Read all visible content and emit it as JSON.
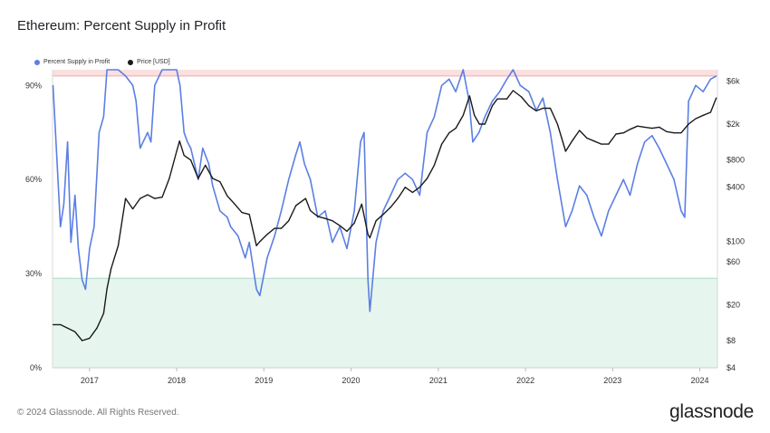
{
  "header": {
    "title": "Ethereum: Percent Supply in Profit"
  },
  "legend": [
    {
      "label": "Percent Supply in Profit",
      "color": "#5b7fe3"
    },
    {
      "label": "Price [USD]",
      "color": "#1a1a1a"
    }
  ],
  "footer": {
    "copyright": "© 2024 Glassnode. All Rights Reserved.",
    "brand": "glassnode"
  },
  "colors": {
    "supply_line": "#5b7fe3",
    "price_line": "#1a1a1a",
    "upper_band": "#fbe0e0",
    "upper_band_line": "#f0a6ad",
    "lower_band": "#e6f6ee",
    "lower_band_line": "#a9dcc2"
  },
  "chart_data": {
    "type": "line",
    "title": "Ethereum: Percent Supply in Profit",
    "x_ticks": [
      "2017",
      "2018",
      "2019",
      "2020",
      "2021",
      "2022",
      "2023",
      "2024"
    ],
    "xlim": [
      "2016-07-30",
      "2024-03-15"
    ],
    "y_left": {
      "ticks": [
        "0%",
        "30%",
        "60%",
        "90%"
      ],
      "tick_values": [
        0,
        30,
        60,
        90
      ],
      "ylim": [
        0,
        95
      ],
      "scale": "linear"
    },
    "y_right": {
      "ticks": [
        "$4",
        "$8",
        "$20",
        "$60",
        "$100",
        "$400",
        "$800",
        "$2k",
        "$6k"
      ],
      "tick_values": [
        4,
        8,
        20,
        60,
        100,
        400,
        800,
        2000,
        6000
      ],
      "ylim": [
        4,
        8000
      ],
      "scale": "log"
    },
    "bands": [
      {
        "axis": "left",
        "from": 93,
        "to": 95,
        "color": "#fbe0e0"
      },
      {
        "axis": "left",
        "from": 0,
        "to": 28.5,
        "color": "#e6f6ee"
      }
    ],
    "series": [
      {
        "name": "Percent Supply in Profit",
        "axis": "left",
        "color": "#5b7fe3",
        "x": [
          "2016-08-01",
          "2016-08-15",
          "2016-09-01",
          "2016-09-15",
          "2016-10-01",
          "2016-10-15",
          "2016-11-01",
          "2016-11-15",
          "2016-12-01",
          "2016-12-15",
          "2017-01-01",
          "2017-01-20",
          "2017-02-10",
          "2017-03-01",
          "2017-03-15",
          "2017-04-01",
          "2017-05-01",
          "2017-06-01",
          "2017-07-01",
          "2017-07-15",
          "2017-08-01",
          "2017-09-01",
          "2017-09-15",
          "2017-10-01",
          "2017-11-01",
          "2017-12-01",
          "2018-01-01",
          "2018-01-15",
          "2018-02-01",
          "2018-02-15",
          "2018-03-01",
          "2018-04-01",
          "2018-04-20",
          "2018-05-15",
          "2018-06-01",
          "2018-07-01",
          "2018-08-01",
          "2018-08-15",
          "2018-09-15",
          "2018-10-15",
          "2018-11-01",
          "2018-12-01",
          "2018-12-15",
          "2019-01-15",
          "2019-02-15",
          "2019-03-15",
          "2019-04-15",
          "2019-05-15",
          "2019-06-01",
          "2019-06-20",
          "2019-07-15",
          "2019-08-15",
          "2019-09-15",
          "2019-10-15",
          "2019-11-15",
          "2019-12-15",
          "2020-01-15",
          "2020-02-10",
          "2020-02-25",
          "2020-03-12",
          "2020-03-20",
          "2020-04-15",
          "2020-05-15",
          "2020-06-15",
          "2020-07-15",
          "2020-08-15",
          "2020-09-15",
          "2020-10-15",
          "2020-11-15",
          "2020-12-15",
          "2021-01-15",
          "2021-02-15",
          "2021-03-15",
          "2021-04-15",
          "2021-05-10",
          "2021-05-25",
          "2021-06-20",
          "2021-07-15",
          "2021-08-15",
          "2021-09-15",
          "2021-10-15",
          "2021-11-10",
          "2021-12-10",
          "2022-01-15",
          "2022-02-15",
          "2022-03-15",
          "2022-04-15",
          "2022-05-15",
          "2022-06-18",
          "2022-07-15",
          "2022-08-15",
          "2022-09-15",
          "2022-10-15",
          "2022-11-15",
          "2022-12-15",
          "2023-01-15",
          "2023-02-15",
          "2023-03-15",
          "2023-04-15",
          "2023-05-15",
          "2023-06-15",
          "2023-07-15",
          "2023-08-15",
          "2023-09-15",
          "2023-10-15",
          "2023-10-30",
          "2023-11-15",
          "2023-12-15",
          "2024-01-15",
          "2024-02-15",
          "2024-03-10"
        ],
        "values": [
          90,
          70,
          45,
          52,
          72,
          40,
          55,
          38,
          28,
          25,
          38,
          45,
          75,
          80,
          95,
          95,
          95,
          93,
          90,
          85,
          70,
          75,
          72,
          90,
          95,
          95,
          95,
          90,
          75,
          72,
          70,
          60,
          70,
          65,
          58,
          50,
          48,
          45,
          42,
          35,
          40,
          25,
          23,
          35,
          42,
          50,
          60,
          68,
          72,
          65,
          60,
          48,
          50,
          40,
          45,
          38,
          50,
          72,
          75,
          28,
          18,
          40,
          50,
          55,
          60,
          62,
          60,
          55,
          75,
          80,
          90,
          92,
          88,
          95,
          85,
          72,
          75,
          80,
          85,
          88,
          92,
          95,
          90,
          88,
          82,
          86,
          75,
          60,
          45,
          50,
          58,
          55,
          48,
          42,
          50,
          55,
          60,
          55,
          65,
          72,
          74,
          70,
          65,
          60,
          50,
          48,
          85,
          90,
          88,
          92,
          93
        ]
      },
      {
        "name": "Price [USD]",
        "axis": "right",
        "color": "#1a1a1a",
        "x": [
          "2016-08-01",
          "2016-09-01",
          "2016-10-01",
          "2016-11-01",
          "2016-12-01",
          "2017-01-01",
          "2017-02-01",
          "2017-03-01",
          "2017-03-15",
          "2017-04-01",
          "2017-05-01",
          "2017-06-01",
          "2017-07-01",
          "2017-08-01",
          "2017-09-01",
          "2017-10-01",
          "2017-11-01",
          "2017-12-01",
          "2018-01-01",
          "2018-01-13",
          "2018-02-01",
          "2018-03-01",
          "2018-04-01",
          "2018-05-01",
          "2018-06-01",
          "2018-07-01",
          "2018-08-01",
          "2018-09-01",
          "2018-10-01",
          "2018-11-01",
          "2018-12-01",
          "2018-12-15",
          "2019-01-15",
          "2019-02-15",
          "2019-03-15",
          "2019-04-15",
          "2019-05-15",
          "2019-06-25",
          "2019-07-15",
          "2019-08-15",
          "2019-09-15",
          "2019-10-15",
          "2019-11-15",
          "2019-12-15",
          "2020-01-15",
          "2020-02-15",
          "2020-03-12",
          "2020-03-20",
          "2020-04-15",
          "2020-05-15",
          "2020-06-15",
          "2020-07-15",
          "2020-08-15",
          "2020-09-15",
          "2020-10-15",
          "2020-11-15",
          "2020-12-15",
          "2021-01-15",
          "2021-02-15",
          "2021-03-15",
          "2021-04-15",
          "2021-05-12",
          "2021-06-01",
          "2021-06-22",
          "2021-07-15",
          "2021-08-15",
          "2021-09-05",
          "2021-10-15",
          "2021-11-10",
          "2021-12-15",
          "2022-01-15",
          "2022-02-15",
          "2022-03-15",
          "2022-04-15",
          "2022-05-15",
          "2022-06-18",
          "2022-07-15",
          "2022-08-15",
          "2022-09-15",
          "2022-10-15",
          "2022-11-15",
          "2022-12-15",
          "2023-01-15",
          "2023-02-15",
          "2023-03-15",
          "2023-04-15",
          "2023-05-15",
          "2023-06-15",
          "2023-07-15",
          "2023-08-15",
          "2023-09-15",
          "2023-10-15",
          "2023-11-15",
          "2023-12-15",
          "2024-01-15",
          "2024-02-15",
          "2024-03-10"
        ],
        "values": [
          12,
          12,
          11,
          10,
          8,
          8.5,
          11,
          16,
          30,
          50,
          90,
          300,
          230,
          300,
          330,
          300,
          310,
          500,
          1000,
          1300,
          900,
          800,
          500,
          700,
          500,
          460,
          320,
          260,
          210,
          200,
          90,
          100,
          120,
          140,
          140,
          170,
          250,
          300,
          220,
          190,
          180,
          170,
          150,
          130,
          160,
          260,
          120,
          110,
          170,
          200,
          240,
          300,
          400,
          350,
          400,
          500,
          700,
          1200,
          1600,
          1800,
          2500,
          4100,
          2500,
          2000,
          2000,
          3200,
          3800,
          3800,
          4700,
          4000,
          3200,
          2800,
          3000,
          3000,
          2000,
          1000,
          1300,
          1700,
          1400,
          1300,
          1200,
          1200,
          1550,
          1600,
          1750,
          1900,
          1850,
          1800,
          1850,
          1650,
          1600,
          1600,
          2000,
          2300,
          2500,
          2700,
          3900
        ]
      }
    ]
  }
}
